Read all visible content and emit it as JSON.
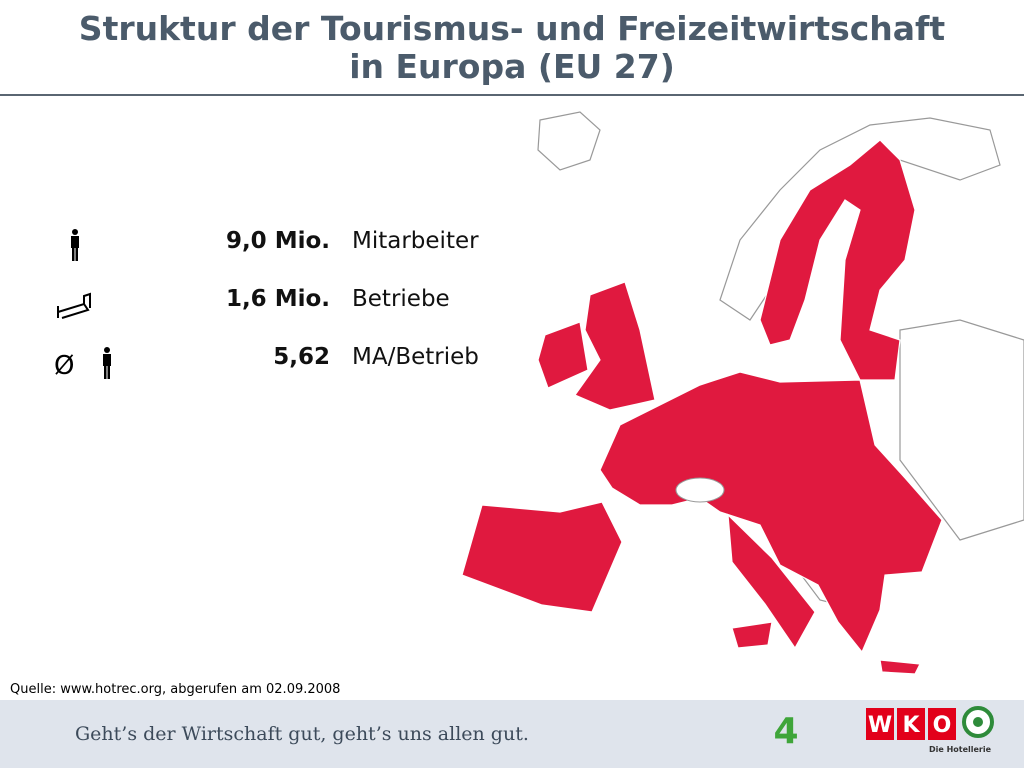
{
  "header": {
    "title_lines": [
      "Struktur der Tourismus- und Freizeitwirtschaft",
      "in Europa (EU 27)"
    ]
  },
  "stats": [
    {
      "value": "9,0 Mio.",
      "label": "Mitarbeiter"
    },
    {
      "value": "1,6 Mio.",
      "label": "Betriebe"
    },
    {
      "symbol": "Ø",
      "value": "5,62",
      "label": "MA/Betrieb"
    }
  ],
  "source": "Quelle: www.hotrec.org, abgerufen am 02.09.2008",
  "footer": {
    "slogan": "Geht’s der Wirtschaft gut, geht’s uns allen gut.",
    "page_number": "4",
    "logo": {
      "letters": [
        "W",
        "K",
        "O"
      ],
      "caption": "Die Hotellerie"
    }
  }
}
